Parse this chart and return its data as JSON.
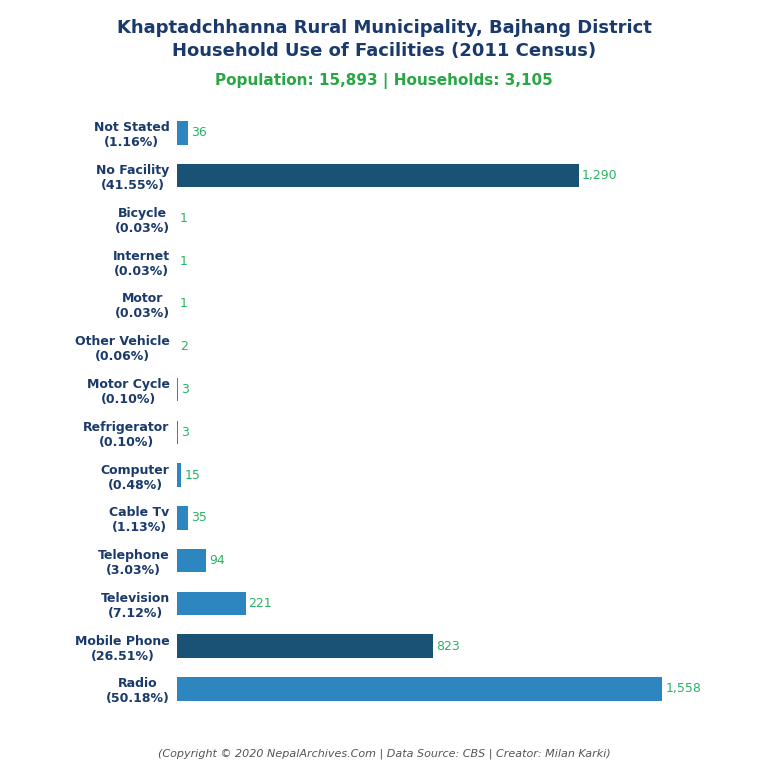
{
  "title_line1": "Khaptadchhanna Rural Municipality, Bajhang District",
  "title_line2": "Household Use of Facilities (2011 Census)",
  "subtitle": "Population: 15,893 | Households: 3,105",
  "categories": [
    "Not Stated\n(1.16%)",
    "No Facility\n(41.55%)",
    "Bicycle\n(0.03%)",
    "Internet\n(0.03%)",
    "Motor\n(0.03%)",
    "Other Vehicle\n(0.06%)",
    "Motor Cycle\n(0.10%)",
    "Refrigerator\n(0.10%)",
    "Computer\n(0.48%)",
    "Cable Tv\n(1.13%)",
    "Telephone\n(3.03%)",
    "Television\n(7.12%)",
    "Mobile Phone\n(26.51%)",
    "Radio\n(50.18%)"
  ],
  "values": [
    36,
    1290,
    1,
    1,
    1,
    2,
    3,
    3,
    15,
    35,
    94,
    221,
    823,
    1558
  ],
  "bar_colors": [
    "#2e86c1",
    "#1a5276",
    "#2e86c1",
    "#2e86c1",
    "#2e86c1",
    "#2e86c1",
    "#2e86c1",
    "#2e86c1",
    "#2e86c1",
    "#2e86c1",
    "#2e86c1",
    "#2e86c1",
    "#1a5276",
    "#2e86c1"
  ],
  "value_color": "#28b463",
  "title_color": "#1a3a6b",
  "subtitle_color": "#28a745",
  "footer_color": "#555555",
  "footer_text": "(Copyright © 2020 NepalArchives.Com | Data Source: CBS | Creator: Milan Karki)",
  "background_color": "#ffffff",
  "xlim": [
    0,
    1750
  ]
}
